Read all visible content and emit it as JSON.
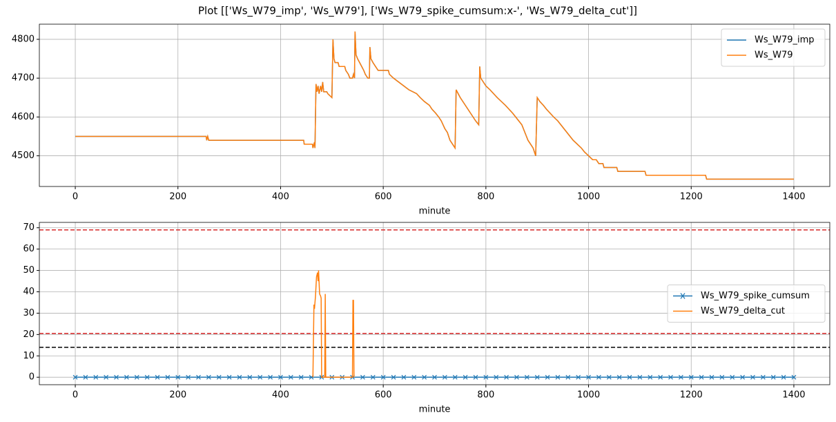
{
  "title": "Plot [['Ws_W79_imp', 'Ws_W79'], ['Ws_W79_spike_cumsum:x-', 'Ws_W79_delta_cut']]",
  "chart_data": [
    {
      "type": "line",
      "xlabel": "minute",
      "xlim": [
        -70,
        1470
      ],
      "xticks": [
        0,
        200,
        400,
        600,
        800,
        1000,
        1200,
        1400
      ],
      "ylim": [
        4421,
        4839
      ],
      "yticks": [
        4500,
        4600,
        4700,
        4800
      ],
      "grid": true,
      "legend": "upper right",
      "x": [
        0,
        255,
        256,
        258,
        260,
        445,
        446,
        462,
        463,
        466,
        467,
        469,
        471,
        473,
        475,
        478,
        480,
        482,
        484,
        490,
        492,
        500,
        502,
        504,
        506,
        512,
        514,
        525,
        527,
        532,
        535,
        540,
        542,
        544,
        545,
        547,
        550,
        554,
        558,
        562,
        565,
        570,
        573,
        574,
        576,
        580,
        585,
        590,
        610,
        612,
        620,
        630,
        640,
        650,
        665,
        672,
        680,
        690,
        695,
        702,
        708,
        713,
        720,
        725,
        730,
        735,
        740,
        742,
        746,
        750,
        755,
        760,
        765,
        770,
        775,
        780,
        786,
        788,
        790,
        795,
        800,
        808,
        815,
        822,
        830,
        838,
        845,
        852,
        858,
        864,
        870,
        876,
        882,
        887,
        892,
        897,
        900,
        905,
        912,
        918,
        925,
        932,
        940,
        946,
        952,
        958,
        964,
        970,
        978,
        986,
        992,
        1000,
        1008,
        1015,
        1020,
        1028,
        1030,
        1055,
        1057,
        1110,
        1112,
        1228,
        1230,
        1400
      ],
      "series": [
        {
          "name": "Ws_W79_imp",
          "color": "#1f77b4",
          "values": [
            4550,
            4550,
            4540,
            4550,
            4540,
            4540,
            4530,
            4530,
            4520,
            4535,
            4520,
            4685,
            4665,
            4680,
            4660,
            4680,
            4665,
            4690,
            4665,
            4665,
            4660,
            4650,
            4800,
            4750,
            4740,
            4740,
            4730,
            4730,
            4720,
            4710,
            4700,
            4700,
            4710,
            4700,
            4820,
            4760,
            4750,
            4740,
            4730,
            4720,
            4710,
            4700,
            4700,
            4780,
            4750,
            4740,
            4730,
            4720,
            4720,
            4710,
            4700,
            4690,
            4680,
            4670,
            4660,
            4650,
            4640,
            4630,
            4620,
            4610,
            4600,
            4590,
            4570,
            4560,
            4540,
            4530,
            4520,
            4670,
            4660,
            4650,
            4640,
            4630,
            4620,
            4610,
            4600,
            4590,
            4580,
            4730,
            4700,
            4690,
            4680,
            4670,
            4660,
            4650,
            4640,
            4630,
            4620,
            4610,
            4600,
            4590,
            4580,
            4560,
            4540,
            4530,
            4520,
            4500,
            4650,
            4640,
            4630,
            4620,
            4610,
            4600,
            4590,
            4580,
            4570,
            4560,
            4550,
            4540,
            4530,
            4520,
            4510,
            4500,
            4490,
            4490,
            4480,
            4480,
            4470,
            4470,
            4460,
            4460,
            4450,
            4450,
            4440,
            4440
          ]
        },
        {
          "name": "Ws_W79",
          "color": "#ff7f0e",
          "values": [
            4550,
            4550,
            4540,
            4550,
            4540,
            4540,
            4530,
            4530,
            4520,
            4535,
            4520,
            4685,
            4665,
            4680,
            4660,
            4680,
            4665,
            4690,
            4665,
            4665,
            4660,
            4650,
            4800,
            4750,
            4740,
            4740,
            4730,
            4730,
            4720,
            4710,
            4700,
            4700,
            4710,
            4700,
            4820,
            4760,
            4750,
            4740,
            4730,
            4720,
            4710,
            4700,
            4700,
            4780,
            4750,
            4740,
            4730,
            4720,
            4720,
            4710,
            4700,
            4690,
            4680,
            4670,
            4660,
            4650,
            4640,
            4630,
            4620,
            4610,
            4600,
            4590,
            4570,
            4560,
            4540,
            4530,
            4520,
            4670,
            4660,
            4650,
            4640,
            4630,
            4620,
            4610,
            4600,
            4590,
            4580,
            4730,
            4700,
            4690,
            4680,
            4670,
            4660,
            4650,
            4640,
            4630,
            4620,
            4610,
            4600,
            4590,
            4580,
            4560,
            4540,
            4530,
            4520,
            4500,
            4650,
            4640,
            4630,
            4620,
            4610,
            4600,
            4590,
            4580,
            4570,
            4560,
            4550,
            4540,
            4530,
            4520,
            4510,
            4500,
            4490,
            4490,
            4480,
            4480,
            4470,
            4470,
            4460,
            4460,
            4450,
            4450,
            4440,
            4440
          ]
        }
      ]
    },
    {
      "type": "line",
      "xlabel": "minute",
      "xlim": [
        -70,
        1470
      ],
      "xticks": [
        0,
        200,
        400,
        600,
        800,
        1000,
        1200,
        1400
      ],
      "ylim": [
        -3.5,
        72.5
      ],
      "yticks": [
        0,
        10,
        20,
        30,
        40,
        50,
        60,
        70
      ],
      "grid": true,
      "legend": "center right",
      "hlines": [
        {
          "value": 69,
          "color": "#d62728"
        },
        {
          "value": 20.5,
          "color": "#d62728"
        },
        {
          "value": 14,
          "color": "#000000"
        }
      ],
      "series": [
        {
          "name": "Ws_W79_spike_cumsum",
          "color": "#1f77b4",
          "marker": "x",
          "x": [
            0,
            20,
            40,
            60,
            80,
            100,
            120,
            140,
            160,
            180,
            200,
            220,
            240,
            260,
            280,
            300,
            320,
            340,
            360,
            380,
            400,
            420,
            440,
            460,
            480,
            500,
            520,
            540,
            560,
            580,
            600,
            620,
            640,
            660,
            680,
            700,
            720,
            740,
            760,
            780,
            800,
            820,
            840,
            860,
            880,
            900,
            920,
            940,
            960,
            980,
            1000,
            1020,
            1040,
            1060,
            1080,
            1100,
            1120,
            1140,
            1160,
            1180,
            1200,
            1220,
            1240,
            1260,
            1280,
            1300,
            1320,
            1340,
            1360,
            1380,
            1400
          ],
          "values": [
            0,
            0,
            0,
            0,
            0,
            0,
            0,
            0,
            0,
            0,
            0,
            0,
            0,
            0,
            0,
            0,
            0,
            0,
            0,
            0,
            0,
            0,
            0,
            0,
            0,
            0,
            0,
            0,
            0,
            0,
            0,
            0,
            0,
            0,
            0,
            0,
            0,
            0,
            0,
            0,
            0,
            0,
            0,
            0,
            0,
            0,
            0,
            0,
            0,
            0,
            0,
            0,
            0,
            0,
            0,
            0,
            0,
            0,
            0,
            0,
            0,
            0,
            0,
            0,
            0,
            0,
            0,
            0,
            0,
            0,
            0
          ]
        },
        {
          "name": "Ws_W79_delta_cut",
          "color": "#ff7f0e",
          "x": [
            463,
            465,
            466,
            468,
            470,
            472,
            473,
            474,
            476,
            478,
            479,
            480,
            484,
            486,
            487,
            488,
            489,
            540,
            541,
            542,
            543
          ],
          "values": [
            0,
            34,
            32,
            38,
            47,
            49,
            45,
            50,
            39,
            38,
            37,
            0,
            0,
            0,
            39,
            0,
            0,
            0,
            36,
            36,
            0
          ]
        }
      ]
    }
  ]
}
